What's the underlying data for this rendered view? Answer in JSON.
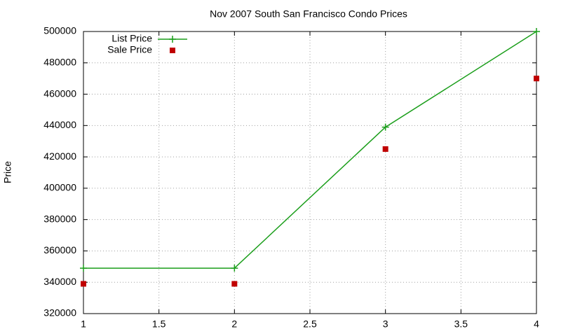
{
  "chart_data": {
    "type": "line",
    "title": "Nov 2007 South San Francisco Condo Prices",
    "y_label": "Price",
    "x": [
      1,
      2,
      3,
      4
    ],
    "series": [
      {
        "name": "List Price",
        "color": "#1a9e1a",
        "mode": "linespoints",
        "values": [
          349000,
          349000,
          439000,
          500000
        ]
      },
      {
        "name": "Sale Price",
        "color": "#c00000",
        "mode": "points",
        "values": [
          339000,
          339000,
          425000,
          470000
        ]
      }
    ],
    "xlim": [
      1,
      4
    ],
    "xticks": [
      1,
      1.5,
      2,
      2.5,
      3,
      3.5,
      4
    ],
    "ylim": [
      320000,
      500000
    ],
    "yticks": [
      320000,
      340000,
      360000,
      380000,
      400000,
      420000,
      440000,
      460000,
      480000,
      500000
    ],
    "grid": true,
    "legend": "top-left"
  }
}
